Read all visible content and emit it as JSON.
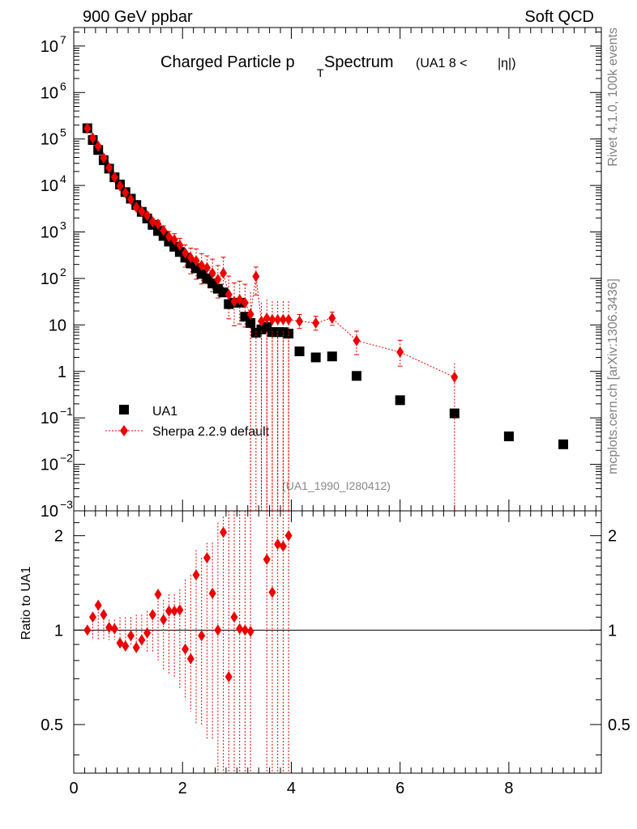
{
  "header": {
    "left": "900 GeV ppbar",
    "right": "Soft QCD"
  },
  "side_text": {
    "top": "Rivet 4.1.0,  100k events",
    "bottom": "mcplots.cern.ch [arXiv:1306.3436]"
  },
  "colors": {
    "data": "#000000",
    "mc": "#ee0000",
    "watermark": "#888888",
    "side_text": "#808080"
  },
  "chart_data": [
    {
      "type": "scatter",
      "title": "Charged Particle p_T Spectrum (UA1  8 < |η|)",
      "title_parts": {
        "main": "Charged Particle p",
        "sub": "T",
        "rest": " Spectrum",
        "qualifier_left": "(UA1   8 < ",
        "qualifier_eta": "|η|)"
      },
      "watermark": "(UA1_1990_I280412)",
      "xlabel": "",
      "ylabel": "",
      "xlim": [
        0,
        9.7
      ],
      "ylim": [
        0.001,
        25000000
      ],
      "yscale": "log",
      "x_ticks": [
        "0",
        "2",
        "4",
        "6",
        "8"
      ],
      "y_ticks": [
        {
          "value": 10000000,
          "base": "10",
          "exp": "7"
        },
        {
          "value": 1000000,
          "base": "10",
          "exp": "6"
        },
        {
          "value": 100000,
          "base": "10",
          "exp": "5"
        },
        {
          "value": 10000,
          "base": "10",
          "exp": "4"
        },
        {
          "value": 1000,
          "base": "10",
          "exp": "3"
        },
        {
          "value": 100,
          "base": "10",
          "exp": "2"
        },
        {
          "value": 10,
          "base": "10",
          "exp": ""
        },
        {
          "value": 1,
          "base": "1",
          "exp": ""
        },
        {
          "value": 0.1,
          "base": "10",
          "exp": "−1"
        },
        {
          "value": 0.01,
          "base": "10",
          "exp": "−2"
        },
        {
          "value": 0.001,
          "base": "10",
          "exp": "−3"
        }
      ],
      "legend": {
        "position": "bottom-left",
        "entries": [
          "UA1",
          "Sherpa 2.2.9 default"
        ]
      },
      "series": [
        {
          "name": "UA1",
          "marker": "square",
          "x": [
            0.25,
            0.35,
            0.45,
            0.55,
            0.65,
            0.75,
            0.85,
            0.95,
            1.05,
            1.15,
            1.25,
            1.35,
            1.45,
            1.55,
            1.65,
            1.75,
            1.85,
            1.95,
            2.05,
            2.15,
            2.25,
            2.35,
            2.45,
            2.55,
            2.65,
            2.75,
            2.85,
            2.95,
            3.05,
            3.15,
            3.25,
            3.35,
            3.45,
            3.55,
            3.65,
            3.75,
            3.85,
            3.95,
            4.15,
            4.45,
            4.75,
            5.2,
            6.0,
            7.0,
            8.0,
            9.0
          ],
          "values": [
            170000,
            95000,
            58000,
            35000,
            23000,
            15000,
            10500,
            7200,
            5200,
            3800,
            2700,
            1950,
            1420,
            1050,
            820,
            620,
            480,
            370,
            280,
            210,
            165,
            125,
            100,
            78,
            60,
            50,
            28,
            30,
            30,
            15,
            11,
            6.8,
            8,
            9,
            7,
            7,
            7,
            6.5,
            2.7,
            2.0,
            2.1,
            0.8,
            0.24,
            0.125,
            0.04,
            0.027
          ]
        },
        {
          "name": "Sherpa 2.2.9 default",
          "marker": "diamond",
          "line": "dotted",
          "x": [
            0.25,
            0.35,
            0.45,
            0.55,
            0.65,
            0.75,
            0.85,
            0.95,
            1.05,
            1.15,
            1.25,
            1.35,
            1.45,
            1.55,
            1.65,
            1.75,
            1.85,
            1.95,
            2.05,
            2.15,
            2.25,
            2.35,
            2.45,
            2.55,
            2.65,
            2.75,
            2.85,
            2.95,
            3.05,
            3.15,
            3.25,
            3.35,
            3.45,
            3.55,
            3.65,
            3.75,
            3.85,
            3.95,
            4.15,
            4.45,
            4.75,
            5.2,
            6.0,
            7.0
          ],
          "values": [
            170000,
            105000,
            70000,
            39000,
            24000,
            15000,
            9800,
            7000,
            5000,
            3400,
            2750,
            2250,
            1650,
            1470,
            1080,
            790,
            680,
            520,
            350,
            280,
            240,
            190,
            170,
            130,
            95,
            130,
            45,
            32,
            35,
            30,
            17,
            110,
            12,
            14,
            13,
            13,
            13,
            13,
            12,
            11,
            14,
            4.6,
            2.6,
            0.75
          ],
          "error_up": [
            1.1,
            1.1,
            1.1,
            1.1,
            1.1,
            1.1,
            1.1,
            1.1,
            1.12,
            1.12,
            1.15,
            1.15,
            1.18,
            1.2,
            1.25,
            1.3,
            1.35,
            1.4,
            1.5,
            1.6,
            1.8,
            1.8,
            1.8,
            2.0,
            2.0,
            2.2,
            2.5,
            2.5,
            2.5,
            2.5,
            3.0,
            1.6,
            2.5,
            2.5,
            2.5,
            2.5,
            2.5,
            2.5,
            1.4,
            1.4,
            1.35,
            1.6,
            1.8,
            2.0
          ],
          "error_down": [
            0.9,
            0.9,
            0.9,
            0.9,
            0.9,
            0.9,
            0.9,
            0.9,
            0.88,
            0.88,
            0.85,
            0.85,
            0.82,
            0.8,
            0.75,
            0.7,
            0.65,
            0.6,
            0.5,
            0.45,
            0.4,
            0.4,
            0.45,
            0.4,
            0.4,
            0.35,
            0.3,
            0.3,
            0.3,
            0.3,
            0.0,
            0.4,
            0.0,
            0.0,
            0.0,
            0.0,
            0.0,
            0.0,
            0.7,
            0.7,
            0.7,
            0.5,
            0.5,
            0.0
          ]
        }
      ]
    },
    {
      "type": "scatter",
      "title": "",
      "xlabel": "",
      "ylabel": "Ratio to UA1",
      "xlim": [
        0,
        9.7
      ],
      "ylim": [
        0.35,
        2.4
      ],
      "yscale": "log",
      "reference_line": 1,
      "x_ticks": [
        "0",
        "2",
        "4",
        "6",
        "8"
      ],
      "y_ticks": [
        {
          "value": 2,
          "label": "2"
        },
        {
          "value": 1,
          "label": "1"
        },
        {
          "value": 0.5,
          "label": "0.5"
        }
      ],
      "series": [
        {
          "name": "Sherpa 2.2.9 default / UA1",
          "marker": "diamond",
          "x": [
            0.25,
            0.35,
            0.45,
            0.55,
            0.65,
            0.75,
            0.85,
            0.95,
            1.05,
            1.15,
            1.25,
            1.35,
            1.45,
            1.55,
            1.65,
            1.75,
            1.85,
            1.95,
            2.05,
            2.15,
            2.25,
            2.35,
            2.45,
            2.55,
            2.65,
            2.75,
            2.85,
            2.95,
            3.05,
            3.15,
            3.25,
            3.55,
            3.65,
            3.75,
            3.85,
            3.95
          ],
          "values": [
            1.0,
            1.1,
            1.2,
            1.12,
            1.02,
            1.01,
            0.91,
            0.89,
            0.96,
            0.88,
            0.93,
            0.98,
            1.12,
            1.3,
            1.08,
            1.15,
            1.15,
            1.16,
            0.87,
            0.81,
            1.5,
            0.96,
            1.7,
            1.31,
            1.0,
            2.05,
            0.71,
            1.1,
            1.01,
            1.0,
            0.99,
            1.68,
            1.32,
            1.88,
            1.85,
            2.0
          ],
          "error_up": [
            1.03,
            1.08,
            1.08,
            1.08,
            1.08,
            1.08,
            1.1,
            1.1,
            1.1,
            1.12,
            1.12,
            1.15,
            1.15,
            1.2,
            1.25,
            1.3,
            1.3,
            1.35,
            1.45,
            1.5,
            1.8,
            1.7,
            1.9,
            1.9,
            2.2,
            2.3,
            2.4,
            2.5,
            2.5,
            2.5,
            2.5,
            2.5,
            2.5,
            2.5,
            2.5,
            2.5
          ],
          "error_down": [
            0.97,
            0.93,
            0.93,
            0.93,
            0.93,
            0.93,
            0.9,
            0.9,
            0.9,
            0.88,
            0.88,
            0.85,
            0.85,
            0.8,
            0.75,
            0.72,
            0.7,
            0.65,
            0.6,
            0.55,
            0.5,
            0.5,
            0.45,
            0.45,
            0.35,
            0.35,
            0.3,
            0.3,
            0.3,
            0.3,
            0.3,
            0.3,
            0.3,
            0.3,
            0.3,
            0.3
          ]
        }
      ]
    }
  ]
}
